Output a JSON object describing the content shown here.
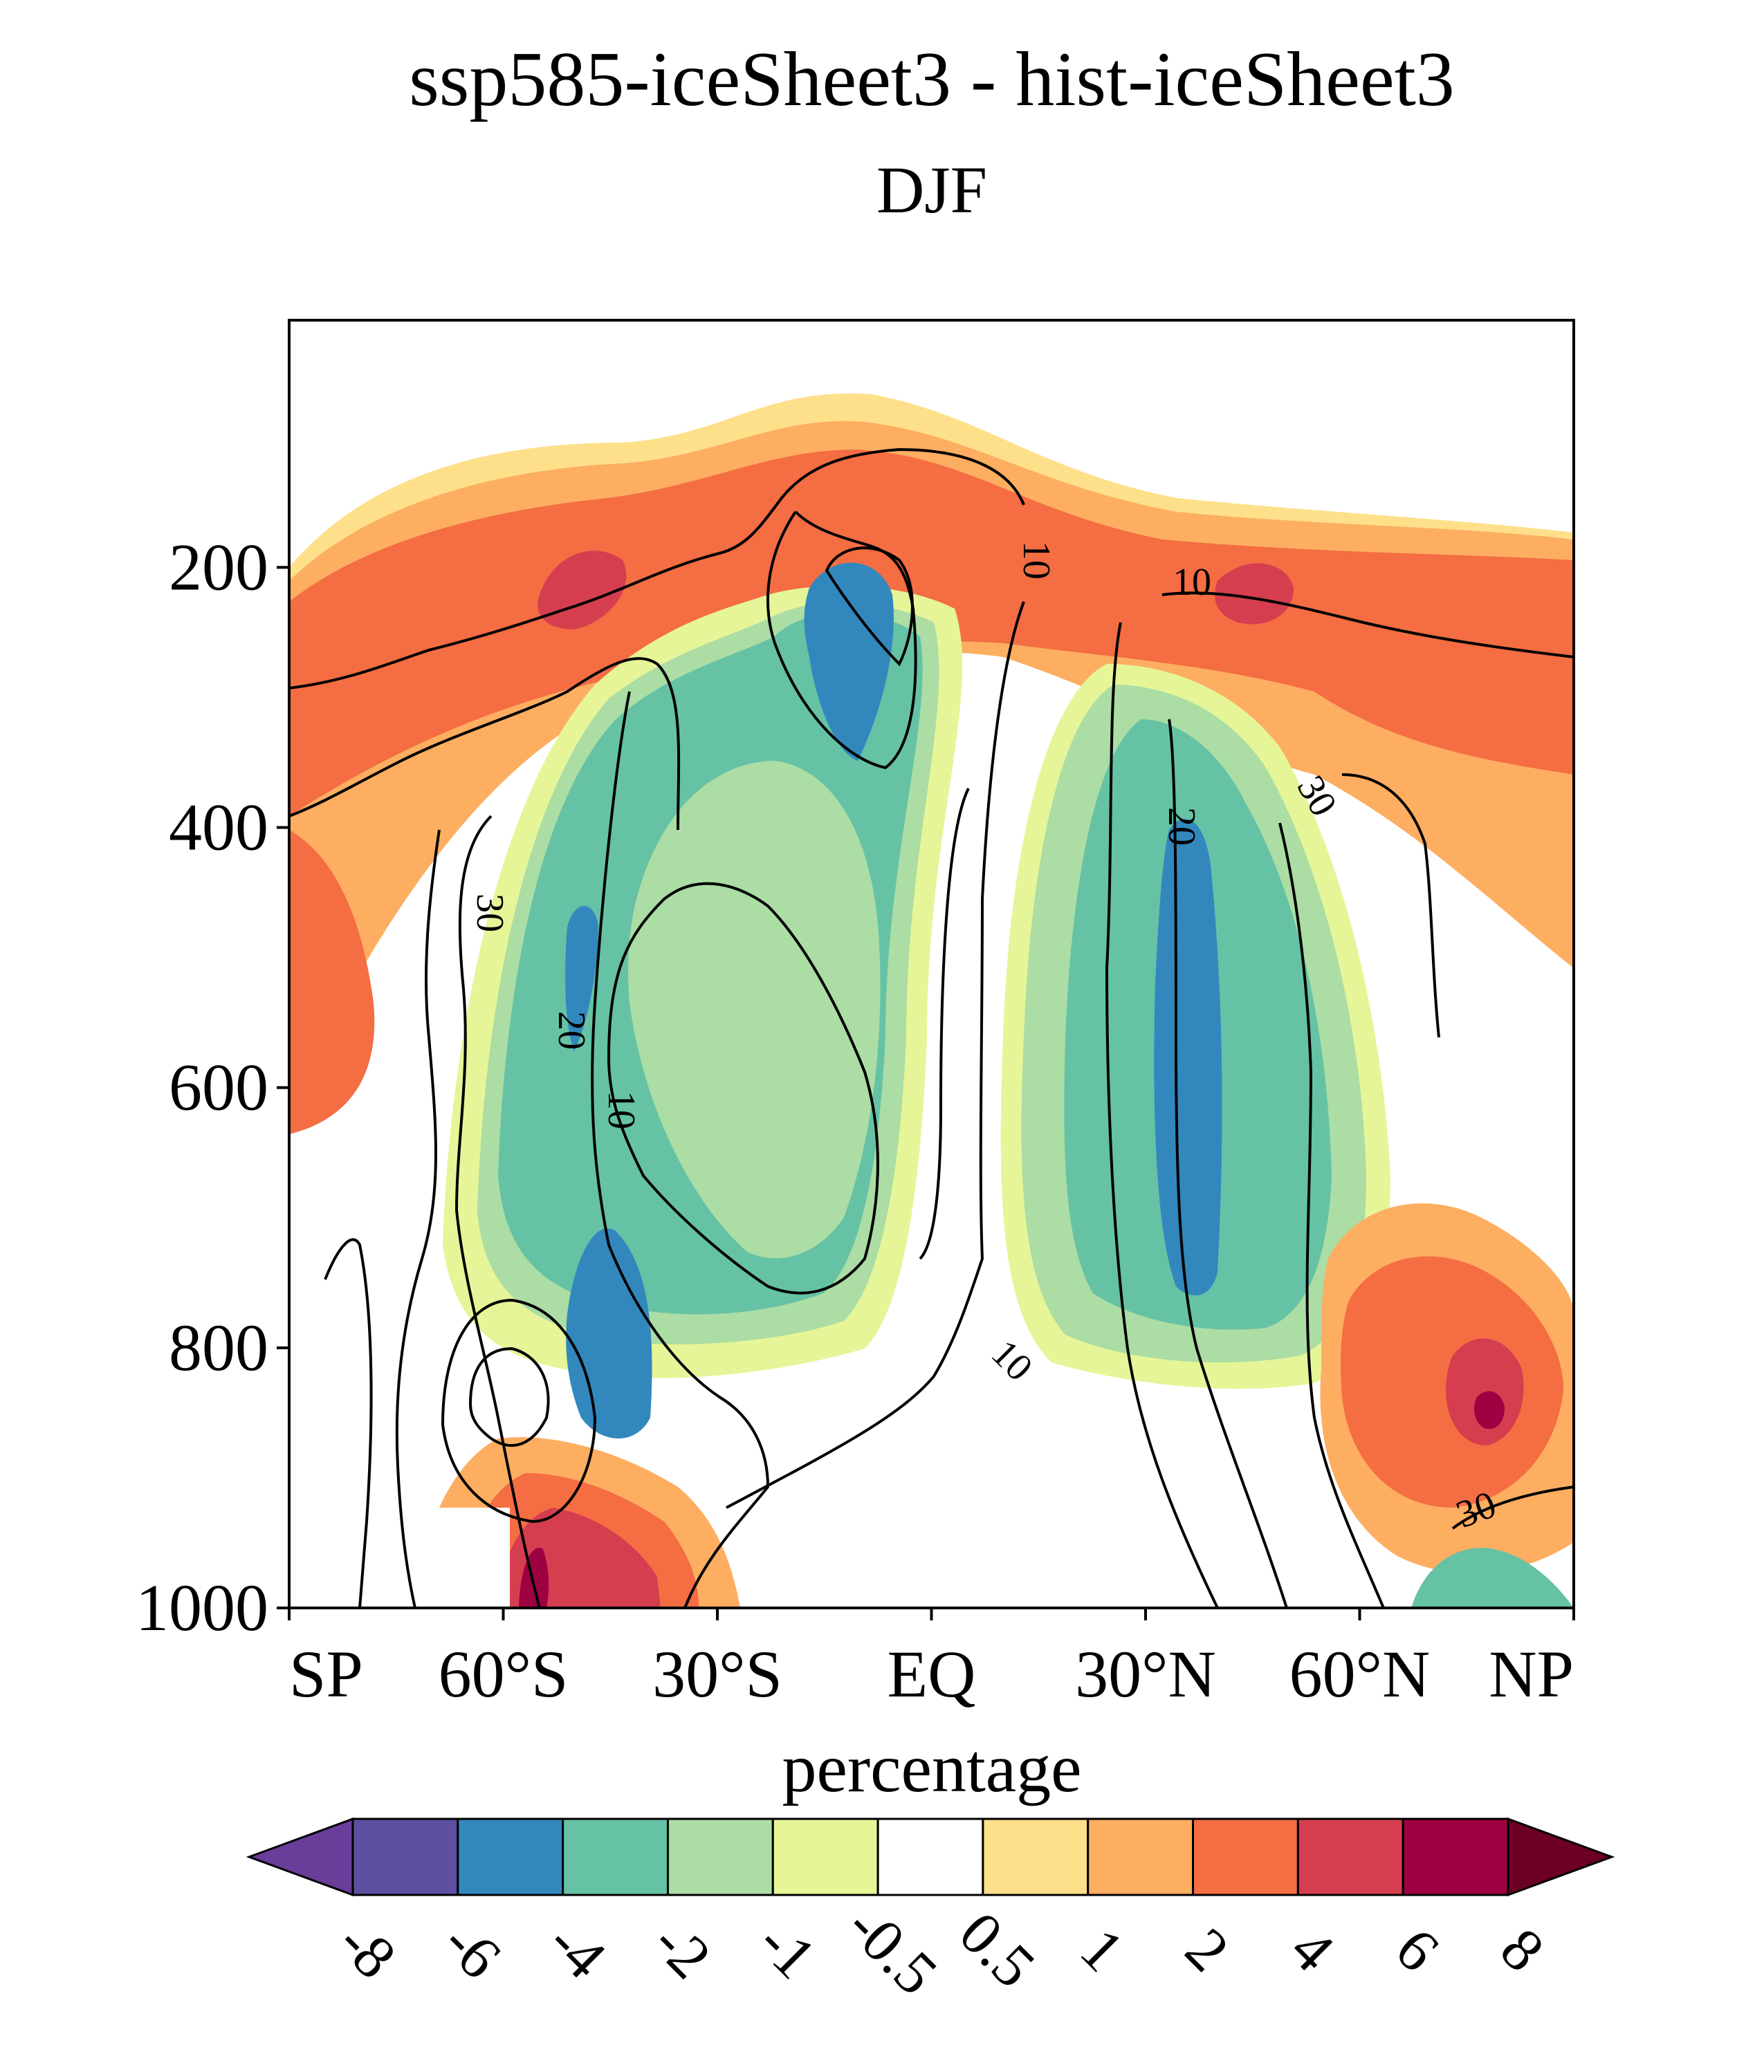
{
  "chart_data": {
    "type": "contour",
    "title": "ssp585-iceSheet3 - hist-iceSheet3",
    "subtitle": "DJF",
    "y_axis": {
      "reversed": true,
      "ylim": [
        1000,
        10
      ],
      "ticks": [
        200,
        400,
        600,
        800,
        1000
      ]
    },
    "x_axis": {
      "xlim": [
        -90,
        90
      ],
      "tick_values": [
        -90,
        -60,
        -30,
        0,
        30,
        60,
        90
      ],
      "tick_labels": [
        "SP",
        "60°S",
        "30°S",
        "EQ",
        "30°N",
        "60°N",
        "NP"
      ]
    },
    "colorbar": {
      "title": "percentage",
      "levels": [
        "-8",
        "-6",
        "-4",
        "-2",
        "-1",
        "-0.5",
        "0.5",
        "1",
        "2",
        "4",
        "6",
        "8"
      ],
      "colors": [
        "#6a3d9a",
        "#5e4fa2",
        "#3288bd",
        "#66c2a5",
        "#abdda4",
        "#e6f598",
        "#ffffff",
        "#fee08b",
        "#fdae61",
        "#f46d43",
        "#d53e4f",
        "#9e0142",
        "#6b0024"
      ]
    },
    "shaded_features": [
      {
        "kind": "positive band",
        "value_range": "0.5 to 4",
        "lat_range": [
          -90,
          90
        ],
        "p_range": [
          110,
          420
        ]
      },
      {
        "kind": "positive maximum",
        "value_range": "4 to 6",
        "lat_center": -52,
        "p_center": 210
      },
      {
        "kind": "positive maximum",
        "value_range": "4 to 6",
        "lat_center": 45,
        "p_center": 220
      },
      {
        "kind": "negative lobe",
        "value_range": "-4 to -0.5",
        "lat_range": [
          -68,
          -5
        ],
        "p_range": [
          250,
          880
        ]
      },
      {
        "kind": "negative maximum",
        "value_range": "-6 to -4",
        "lat_center": -14,
        "p_center": 280
      },
      {
        "kind": "negative lobe",
        "value_range": "-4 to -0.5",
        "lat_range": [
          10,
          62
        ],
        "p_range": [
          330,
          900
        ]
      },
      {
        "kind": "negative maximum",
        "value_range": "-6 to -4",
        "lat_center": 33,
        "p_center": 650
      },
      {
        "kind": "positive maximum",
        "value_range": "4 to 8",
        "lat_center": 80,
        "p_center": 860
      },
      {
        "kind": "positive maximum",
        "value_range": "4 to 8",
        "lat_center": -57,
        "p_center": 975
      }
    ],
    "contour_labels": [
      "10",
      "10",
      "10",
      "10",
      "20",
      "20",
      "30",
      "30",
      "30"
    ]
  }
}
